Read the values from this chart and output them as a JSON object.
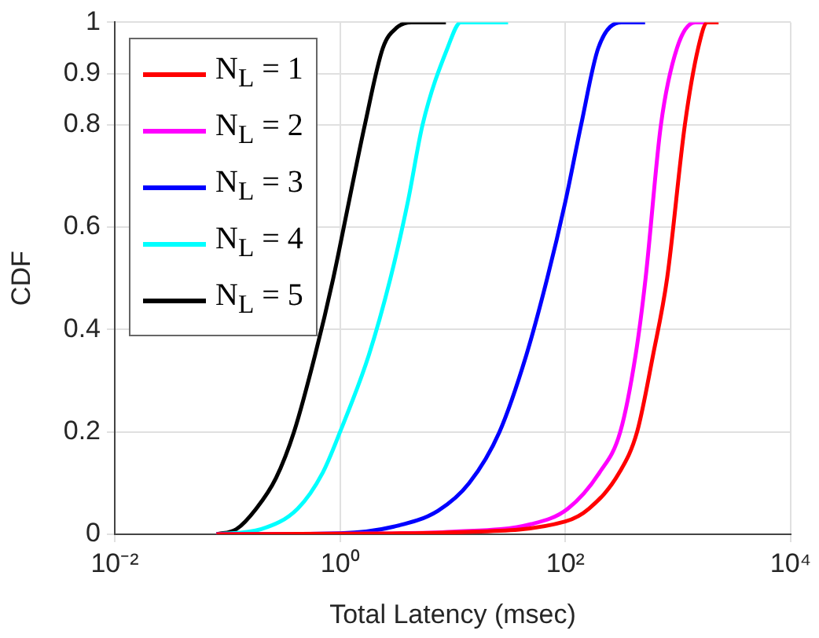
{
  "chart_data": {
    "type": "line",
    "xlabel": "Total Latency (msec)",
    "ylabel": "CDF",
    "log": "x",
    "grid": true,
    "legend": "top left",
    "marker": "none",
    "xlim": [
      0.01,
      10000
    ],
    "xticks": [
      {
        "value": 0.01,
        "label": "10⁻²"
      },
      {
        "value": 1,
        "label": "10⁰"
      },
      {
        "value": 100,
        "label": "10²"
      },
      {
        "value": 10000,
        "label": "10⁴"
      }
    ],
    "ylim": [
      0,
      1
    ],
    "yticks": [
      0,
      0.2,
      0.4,
      0.6,
      0.8,
      0.9,
      1
    ],
    "series": [
      {
        "name": "N$_{L}$ = 1",
        "color": "#ff0000",
        "x": [
          0.08,
          1,
          10,
          100,
          162,
          300,
          433,
          600,
          800,
          1150,
          1510,
          1820,
          2290
        ],
        "values": [
          0,
          0.001,
          0.004,
          0.025,
          0.05,
          0.12,
          0.2,
          0.35,
          0.5,
          0.8,
          0.95,
          1,
          1
        ]
      },
      {
        "name": "N$_{L}$ = 2",
        "color": "#ff00ff",
        "x": [
          0.08,
          1,
          10,
          50,
          105,
          200,
          307,
          420,
          515,
          705,
          980,
          1420,
          1780
        ],
        "values": [
          0,
          0.001,
          0.005,
          0.02,
          0.05,
          0.12,
          0.2,
          0.35,
          0.5,
          0.8,
          0.95,
          1,
          1
        ]
      },
      {
        "name": "N$_{L}$ = 3",
        "color": "#0000ff",
        "x": [
          0.08,
          1,
          3,
          7.4,
          14,
          26,
          45,
          69,
          100,
          138,
          196,
          316,
          510
        ],
        "values": [
          0,
          0.002,
          0.015,
          0.046,
          0.1,
          0.2,
          0.35,
          0.5,
          0.65,
          0.8,
          0.95,
          1,
          1
        ]
      },
      {
        "name": "N$_{L}$ = 4",
        "color": "#00ffff",
        "x": [
          0.08,
          0.2,
          0.42,
          0.7,
          1,
          1.8,
          2.8,
          4,
          5.4,
          9,
          11.8,
          31
        ],
        "values": [
          0,
          0.01,
          0.05,
          0.12,
          0.2,
          0.35,
          0.5,
          0.65,
          0.8,
          0.95,
          1,
          1
        ]
      },
      {
        "name": "N$_{L}$ = 5",
        "color": "#000000",
        "x": [
          0.08,
          0.12,
          0.18,
          0.27,
          0.39,
          0.6,
          0.87,
          1.2,
          1.66,
          2.4,
          3.2,
          4.3,
          8.7
        ],
        "values": [
          0,
          0.01,
          0.05,
          0.11,
          0.2,
          0.35,
          0.5,
          0.65,
          0.8,
          0.95,
          0.99,
          1,
          1
        ]
      }
    ]
  }
}
